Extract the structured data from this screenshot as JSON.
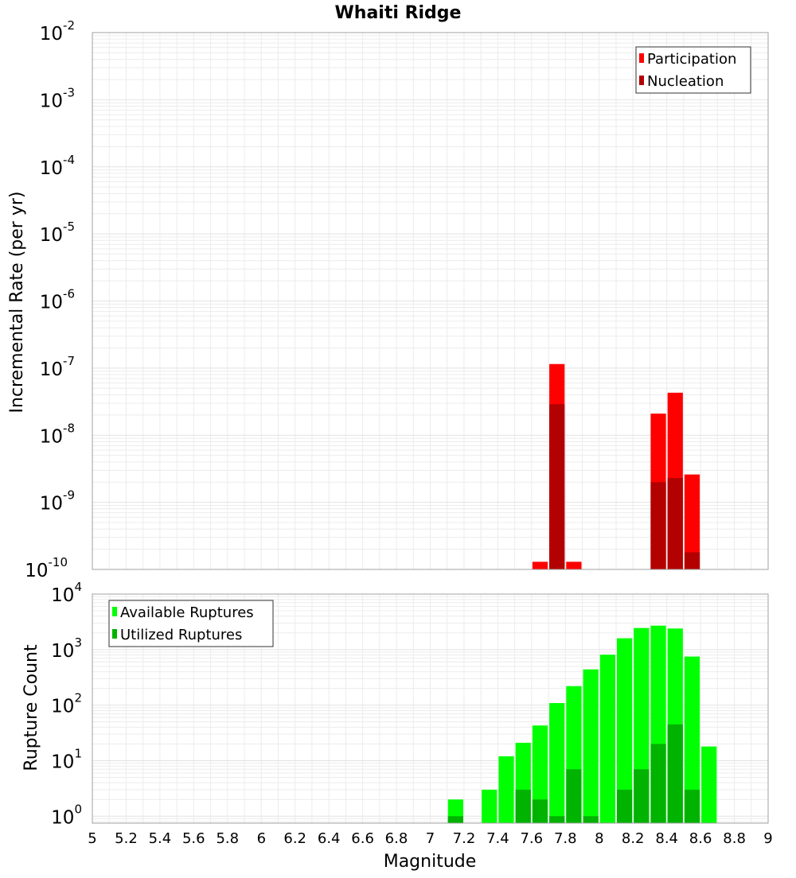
{
  "chart_data": [
    {
      "type": "bar",
      "title": "Whaiti Ridge",
      "xlabel": "",
      "ylabel": "Incremental Rate (per yr)",
      "yscale": "log",
      "ylim": [
        1e-10,
        0.01
      ],
      "xlim": [
        5,
        9
      ],
      "bin_width": 0.1,
      "grid": true,
      "legend_position": "top-right",
      "y_ticks": [
        {
          "base": "10",
          "exp": "-2",
          "value": 0.01
        },
        {
          "base": "10",
          "exp": "-3",
          "value": 0.001
        },
        {
          "base": "10",
          "exp": "-4",
          "value": 0.0001
        },
        {
          "base": "10",
          "exp": "-5",
          "value": 1e-05
        },
        {
          "base": "10",
          "exp": "-6",
          "value": 1e-06
        },
        {
          "base": "10",
          "exp": "-7",
          "value": 1e-07
        },
        {
          "base": "10",
          "exp": "-8",
          "value": 1e-08
        },
        {
          "base": "10",
          "exp": "-9",
          "value": 1e-09
        },
        {
          "base": "10",
          "exp": "-10",
          "value": 1e-10
        }
      ],
      "series": [
        {
          "name": "Participation",
          "color": "#ff0000",
          "x": [
            7.65,
            7.75,
            7.85,
            8.35,
            8.45,
            8.55
          ],
          "values": [
            1.3e-10,
            1.15e-07,
            1.3e-10,
            2.1e-08,
            4.3e-08,
            2.6e-09
          ]
        },
        {
          "name": "Nucleation",
          "color": "#b30000",
          "x": [
            7.75,
            8.35,
            8.45,
            8.55
          ],
          "values": [
            2.9e-08,
            2e-09,
            2.3e-09,
            1.8e-10
          ]
        }
      ]
    },
    {
      "type": "bar",
      "title": "",
      "xlabel": "Magnitude",
      "ylabel": "Rupture Count",
      "yscale": "log",
      "ylim": [
        0.75,
        10000
      ],
      "xlim": [
        5,
        9
      ],
      "bin_width": 0.1,
      "grid": true,
      "legend_position": "top-left",
      "x_ticks": [
        "5",
        "5.2",
        "5.4",
        "5.6",
        "5.8",
        "6",
        "6.2",
        "6.4",
        "6.6",
        "6.8",
        "7",
        "7.2",
        "7.4",
        "7.6",
        "7.8",
        "8",
        "8.2",
        "8.4",
        "8.6",
        "8.8",
        "9"
      ],
      "y_ticks": [
        {
          "base": "10",
          "exp": "4",
          "value": 10000
        },
        {
          "base": "10",
          "exp": "3",
          "value": 1000
        },
        {
          "base": "10",
          "exp": "2",
          "value": 100
        },
        {
          "base": "10",
          "exp": "1",
          "value": 10
        },
        {
          "base": "10",
          "exp": "0",
          "value": 1
        }
      ],
      "series": [
        {
          "name": "Available Ruptures",
          "color": "#00ff00",
          "x": [
            7.15,
            7.35,
            7.45,
            7.55,
            7.65,
            7.75,
            7.85,
            7.95,
            8.05,
            8.15,
            8.25,
            8.35,
            8.45,
            8.55,
            8.65
          ],
          "values": [
            2,
            3,
            12,
            21,
            43,
            109,
            220,
            440,
            810,
            1600,
            2450,
            2700,
            2400,
            750,
            18
          ]
        },
        {
          "name": "Utilized Ruptures",
          "color": "#00b300",
          "x": [
            7.15,
            7.55,
            7.65,
            7.75,
            7.85,
            7.95,
            8.15,
            8.25,
            8.35,
            8.45,
            8.55
          ],
          "values": [
            1,
            3,
            2,
            1,
            7,
            1,
            3,
            7,
            20,
            45,
            3
          ]
        }
      ]
    }
  ]
}
